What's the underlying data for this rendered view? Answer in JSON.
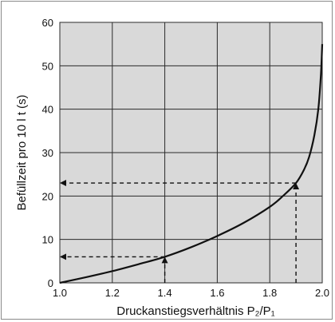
{
  "chart_data": {
    "type": "line",
    "title": "",
    "xlabel": "Druckanstiegsverhältnis  P₂/P₁",
    "ylabel": "Befüllzeit pro 10 l  t (s)",
    "xlim": [
      1.0,
      2.0
    ],
    "ylim": [
      0,
      60
    ],
    "xticks": [
      1.0,
      1.2,
      1.4,
      1.6,
      1.8,
      2.0
    ],
    "yticks": [
      0,
      10,
      20,
      30,
      40,
      50,
      60
    ],
    "xtick_labels": [
      "1.0",
      "1.2",
      "1.4",
      "1.6",
      "1.8",
      "2.0"
    ],
    "ytick_labels": [
      "0",
      "10",
      "20",
      "30",
      "40",
      "50",
      "60"
    ],
    "grid": true,
    "series": [
      {
        "x": [
          1.0,
          1.1,
          1.2,
          1.3,
          1.4,
          1.5,
          1.6,
          1.7,
          1.8,
          1.85,
          1.9,
          1.93,
          1.95,
          1.97,
          1.985,
          1.995,
          2.0
        ],
        "y": [
          0,
          1.3,
          2.7,
          4.3,
          6.0,
          8.2,
          10.8,
          13.8,
          17.5,
          20.0,
          23.0,
          26.0,
          29.0,
          34.0,
          40.0,
          48.0,
          55.0
        ],
        "color": "#111111"
      }
    ],
    "annotations": [
      {
        "type": "dashed-guide",
        "from_x": 1.4,
        "to_y": 6.0
      },
      {
        "type": "dashed-guide",
        "from_x": 1.9,
        "to_y": 23.0
      }
    ],
    "colors": {
      "grid": "#2a2a2a",
      "plot_background": "#d9d9d9",
      "curve": "#111111"
    }
  }
}
